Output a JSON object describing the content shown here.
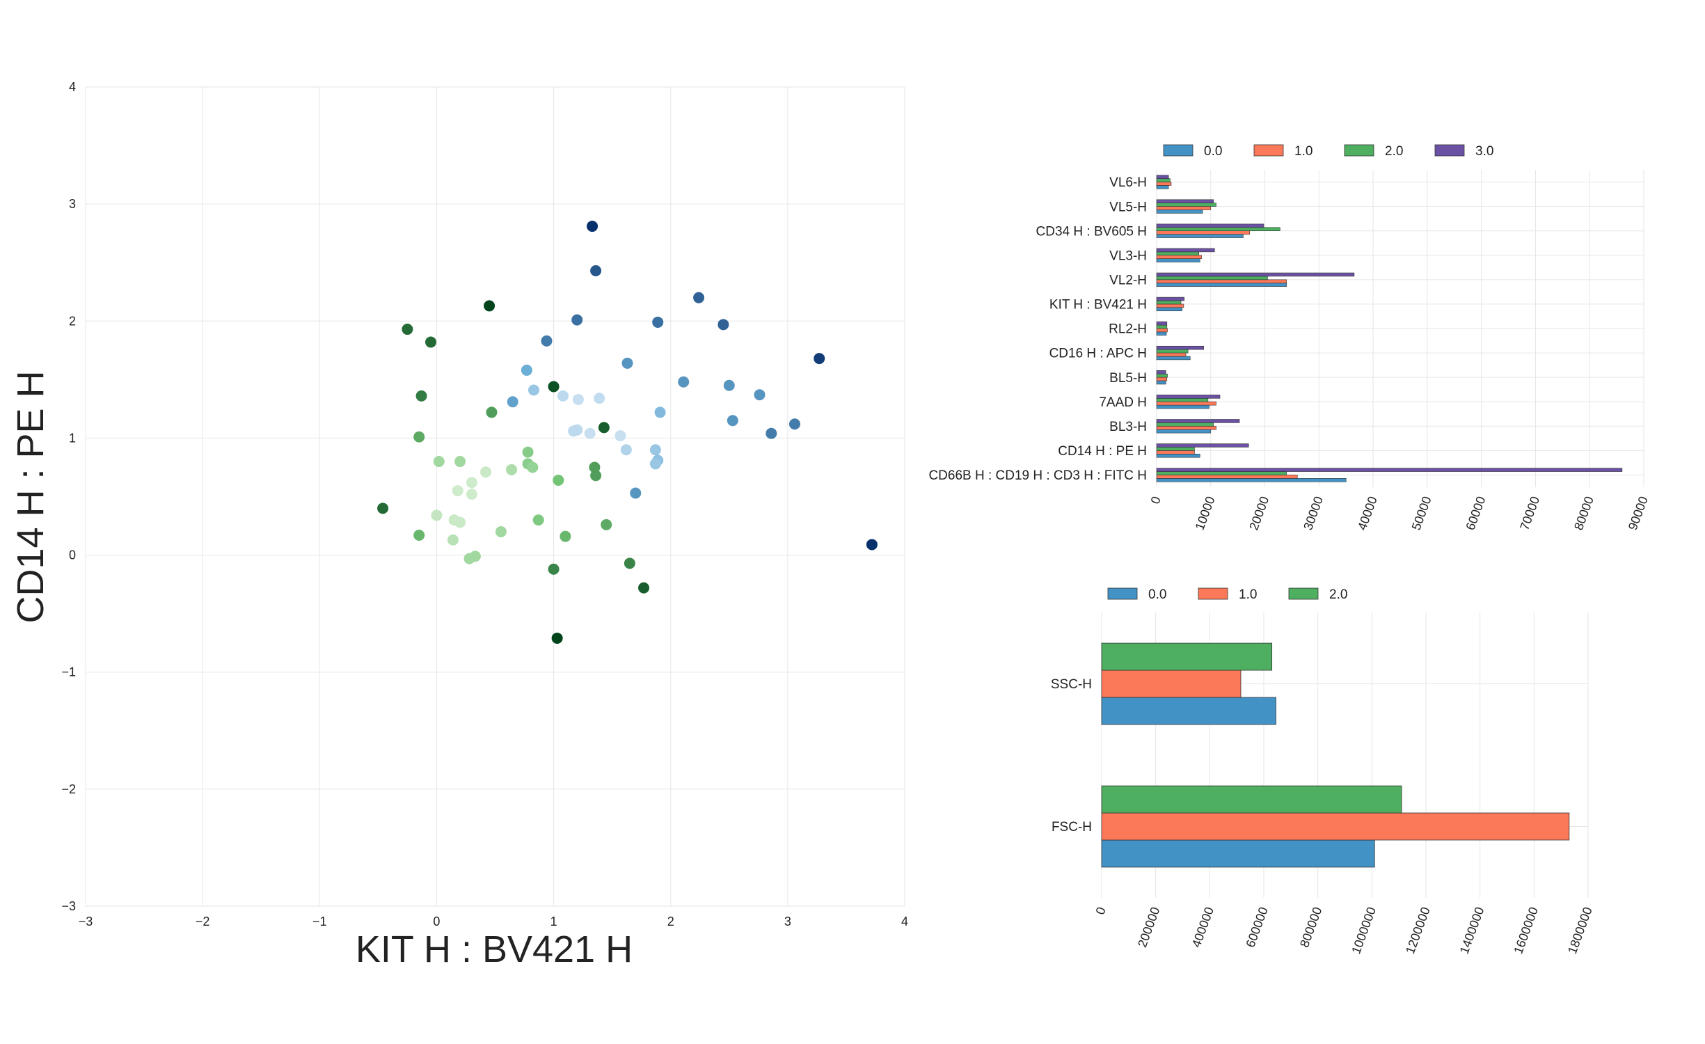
{
  "chart_data": [
    {
      "type": "scatter",
      "title": "",
      "xlabel": "KIT H : BV421 H",
      "ylabel": "CD14 H : PE H",
      "xlim": [
        -3,
        4
      ],
      "ylim": [
        -3,
        4
      ],
      "xticks": [
        "−3",
        "−2",
        "−1",
        "0",
        "1",
        "2",
        "3",
        "4"
      ],
      "yticks": [
        "−3",
        "−2",
        "−1",
        "0",
        "1",
        "2",
        "3",
        "4"
      ],
      "grid": true,
      "series": [
        {
          "colormap": "greens",
          "points": [
            {
              "x": 0.45,
              "y": 2.13,
              "c": 1.0
            },
            {
              "x": -0.25,
              "y": 1.93,
              "c": 0.85
            },
            {
              "x": -0.05,
              "y": 1.82,
              "c": 0.85
            },
            {
              "x": -0.13,
              "y": 1.36,
              "c": 0.78
            },
            {
              "x": 1.0,
              "y": 1.44,
              "c": 0.95
            },
            {
              "x": 0.47,
              "y": 1.22,
              "c": 0.65
            },
            {
              "x": 1.43,
              "y": 1.09,
              "c": 0.9
            },
            {
              "x": -0.15,
              "y": 1.01,
              "c": 0.6
            },
            {
              "x": 0.78,
              "y": 0.88,
              "c": 0.42
            },
            {
              "x": 0.02,
              "y": 0.8,
              "c": 0.3
            },
            {
              "x": 0.2,
              "y": 0.8,
              "c": 0.3
            },
            {
              "x": 0.78,
              "y": 0.78,
              "c": 0.4
            },
            {
              "x": 0.82,
              "y": 0.75,
              "c": 0.35
            },
            {
              "x": 0.64,
              "y": 0.73,
              "c": 0.25
            },
            {
              "x": 0.42,
              "y": 0.71,
              "c": 0.12
            },
            {
              "x": 1.35,
              "y": 0.75,
              "c": 0.65
            },
            {
              "x": 1.36,
              "y": 0.68,
              "c": 0.65
            },
            {
              "x": 1.04,
              "y": 0.64,
              "c": 0.5
            },
            {
              "x": 0.3,
              "y": 0.62,
              "c": 0.1
            },
            {
              "x": 0.18,
              "y": 0.55,
              "c": 0.1
            },
            {
              "x": 0.3,
              "y": 0.52,
              "c": 0.1
            },
            {
              "x": -0.46,
              "y": 0.4,
              "c": 0.85
            },
            {
              "x": 0.0,
              "y": 0.34,
              "c": 0.15
            },
            {
              "x": 0.15,
              "y": 0.3,
              "c": 0.12
            },
            {
              "x": 0.2,
              "y": 0.28,
              "c": 0.12
            },
            {
              "x": 0.87,
              "y": 0.3,
              "c": 0.45
            },
            {
              "x": 1.45,
              "y": 0.26,
              "c": 0.6
            },
            {
              "x": 0.55,
              "y": 0.2,
              "c": 0.3
            },
            {
              "x": -0.15,
              "y": 0.17,
              "c": 0.55
            },
            {
              "x": 1.1,
              "y": 0.16,
              "c": 0.55
            },
            {
              "x": 0.14,
              "y": 0.13,
              "c": 0.2
            },
            {
              "x": 0.33,
              "y": -0.01,
              "c": 0.3
            },
            {
              "x": 0.28,
              "y": -0.03,
              "c": 0.3
            },
            {
              "x": 1.65,
              "y": -0.07,
              "c": 0.75
            },
            {
              "x": 1.0,
              "y": -0.12,
              "c": 0.75
            },
            {
              "x": 1.77,
              "y": -0.28,
              "c": 0.9
            },
            {
              "x": 1.03,
              "y": -0.71,
              "c": 1.0
            }
          ]
        },
        {
          "colormap": "blues",
          "points": [
            {
              "x": 1.33,
              "y": 2.81,
              "c": 1.0
            },
            {
              "x": 1.36,
              "y": 2.43,
              "c": 0.85
            },
            {
              "x": 2.24,
              "y": 2.2,
              "c": 0.8
            },
            {
              "x": 1.2,
              "y": 2.01,
              "c": 0.75
            },
            {
              "x": 1.89,
              "y": 1.99,
              "c": 0.75
            },
            {
              "x": 2.45,
              "y": 1.97,
              "c": 0.8
            },
            {
              "x": 0.94,
              "y": 1.83,
              "c": 0.7
            },
            {
              "x": 3.27,
              "y": 1.68,
              "c": 0.95
            },
            {
              "x": 1.63,
              "y": 1.64,
              "c": 0.6
            },
            {
              "x": 0.77,
              "y": 1.58,
              "c": 0.5
            },
            {
              "x": 2.11,
              "y": 1.48,
              "c": 0.6
            },
            {
              "x": 2.5,
              "y": 1.45,
              "c": 0.6
            },
            {
              "x": 0.83,
              "y": 1.41,
              "c": 0.3
            },
            {
              "x": 2.76,
              "y": 1.37,
              "c": 0.6
            },
            {
              "x": 1.08,
              "y": 1.36,
              "c": 0.15
            },
            {
              "x": 1.39,
              "y": 1.34,
              "c": 0.12
            },
            {
              "x": 1.21,
              "y": 1.33,
              "c": 0.1
            },
            {
              "x": 0.65,
              "y": 1.31,
              "c": 0.55
            },
            {
              "x": 1.91,
              "y": 1.22,
              "c": 0.4
            },
            {
              "x": 2.53,
              "y": 1.15,
              "c": 0.6
            },
            {
              "x": 3.06,
              "y": 1.12,
              "c": 0.7
            },
            {
              "x": 1.17,
              "y": 1.06,
              "c": 0.15
            },
            {
              "x": 1.2,
              "y": 1.07,
              "c": 0.15
            },
            {
              "x": 1.31,
              "y": 1.04,
              "c": 0.1
            },
            {
              "x": 1.57,
              "y": 1.02,
              "c": 0.1
            },
            {
              "x": 2.86,
              "y": 1.04,
              "c": 0.7
            },
            {
              "x": 1.62,
              "y": 0.9,
              "c": 0.2
            },
            {
              "x": 1.87,
              "y": 0.9,
              "c": 0.3
            },
            {
              "x": 1.89,
              "y": 0.81,
              "c": 0.35
            },
            {
              "x": 1.87,
              "y": 0.78,
              "c": 0.3
            },
            {
              "x": 1.7,
              "y": 0.53,
              "c": 0.6
            },
            {
              "x": 3.72,
              "y": 0.09,
              "c": 1.0
            }
          ]
        }
      ]
    },
    {
      "type": "bar",
      "orientation": "horizontal",
      "categories": [
        "VL6-H",
        "VL5-H",
        "CD34 H : BV605 H",
        "VL3-H",
        "VL2-H",
        "KIT H : BV421 H",
        "RL2-H",
        "CD16 H : APC H",
        "BL5-H",
        "7AAD H",
        "BL3-H",
        "CD14 H : PE H",
        "CD66B H : CD19 H : CD3 H : FITC H"
      ],
      "series": [
        {
          "name": "0.0",
          "color": "#4292c6",
          "values": [
            2200,
            8500,
            16000,
            8000,
            24000,
            4700,
            1800,
            6200,
            1700,
            9700,
            10000,
            8000,
            35000
          ]
        },
        {
          "name": "1.0",
          "color": "#fb7858",
          "values": [
            2700,
            10000,
            17200,
            8300,
            24000,
            5000,
            2000,
            5400,
            1900,
            11000,
            11000,
            7000,
            26000
          ]
        },
        {
          "name": "2.0",
          "color": "#4daf5f",
          "values": [
            2500,
            11000,
            22800,
            7800,
            20500,
            4500,
            1900,
            5800,
            2000,
            9500,
            10500,
            7000,
            24000
          ]
        },
        {
          "name": "3.0",
          "color": "#6a51a3",
          "values": [
            2200,
            10500,
            19800,
            10700,
            36500,
            5100,
            1900,
            8700,
            1700,
            11700,
            15300,
            17000,
            86000
          ]
        }
      ],
      "xlim": [
        0,
        90000
      ],
      "xticks": [
        "0",
        "10000",
        "20000",
        "30000",
        "40000",
        "50000",
        "60000",
        "70000",
        "80000",
        "90000"
      ],
      "legend_position": "top",
      "grid": true
    },
    {
      "type": "bar",
      "orientation": "horizontal",
      "categories": [
        "SSC-H",
        "FSC-H"
      ],
      "series": [
        {
          "name": "0.0",
          "color": "#4292c6",
          "values": [
            645000,
            1010000
          ]
        },
        {
          "name": "1.0",
          "color": "#fb7858",
          "values": [
            515000,
            1730000
          ]
        },
        {
          "name": "2.0",
          "color": "#4daf5f",
          "values": [
            630000,
            1110000
          ]
        }
      ],
      "xlim": [
        0,
        1800000
      ],
      "xticks": [
        "0",
        "200000",
        "400000",
        "600000",
        "800000",
        "1000000",
        "1200000",
        "1400000",
        "1600000",
        "1800000"
      ],
      "legend_position": "top",
      "grid": true
    }
  ]
}
